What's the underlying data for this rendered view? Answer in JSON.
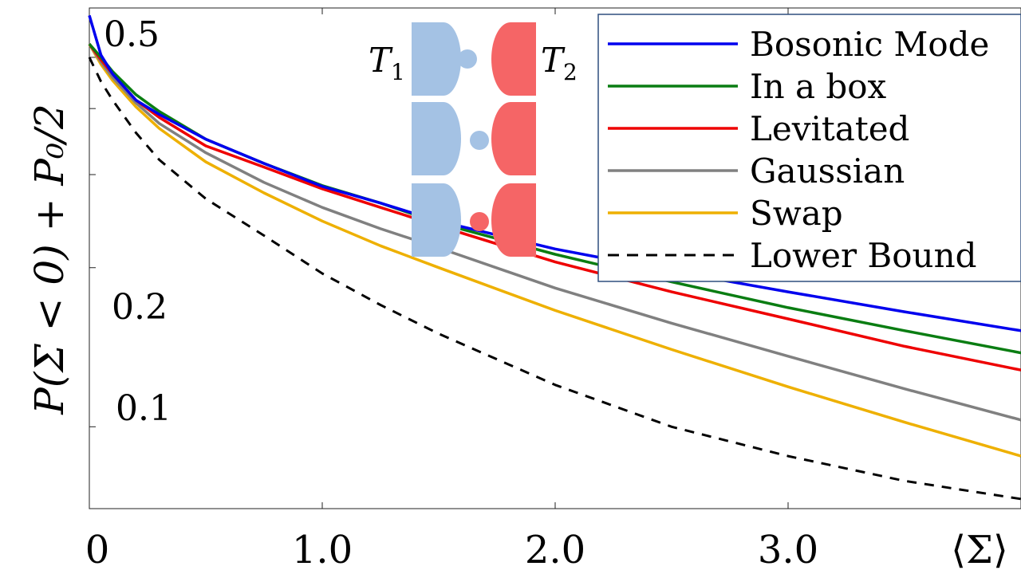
{
  "chart_data": {
    "type": "line",
    "title": "",
    "xlabel": "⟨Σ⟩",
    "ylabel": "P(Σ < 0) + P₀/2",
    "xlim": [
      0,
      4.0
    ],
    "ylim": [
      0.07,
      0.62
    ],
    "xticks": [
      {
        "value": 0,
        "label": "0"
      },
      {
        "value": 1.0,
        "label": "1.0"
      },
      {
        "value": 2.0,
        "label": "2.0"
      },
      {
        "value": 3.0,
        "label": "3.0"
      }
    ],
    "yticks": [
      {
        "value": 0.1,
        "label": "0.1"
      },
      {
        "value": 0.2,
        "label": "0.2"
      },
      {
        "value": 0.5,
        "label": "0.5"
      }
    ],
    "x": [
      0,
      0.05,
      0.1,
      0.2,
      0.3,
      0.5,
      0.75,
      1.0,
      1.25,
      1.5,
      2.0,
      2.5,
      3.0,
      3.5,
      4.0
    ],
    "series": [
      {
        "name": "Bosonic Mode",
        "color": "#0000ee",
        "dash": "solid",
        "values": [
          0.6,
          0.505,
          0.465,
          0.415,
          0.39,
          0.35,
          0.315,
          0.285,
          0.265,
          0.245,
          0.217,
          0.197,
          0.18,
          0.165,
          0.152
        ]
      },
      {
        "name": "In a box",
        "color": "#0a7d12",
        "dash": "solid",
        "values": [
          0.53,
          0.5,
          0.47,
          0.425,
          0.395,
          0.35,
          0.315,
          0.286,
          0.265,
          0.243,
          0.212,
          0.188,
          0.168,
          0.152,
          0.138
        ]
      },
      {
        "name": "Levitated",
        "color": "#ee0000",
        "dash": "solid",
        "values": [
          0.53,
          0.495,
          0.465,
          0.415,
          0.385,
          0.34,
          0.31,
          0.282,
          0.26,
          0.24,
          0.205,
          0.18,
          0.16,
          0.142,
          0.128
        ]
      },
      {
        "name": "Gaussian",
        "color": "#808080",
        "dash": "solid",
        "values": [
          0.53,
          0.49,
          0.458,
          0.41,
          0.375,
          0.33,
          0.29,
          0.26,
          0.237,
          0.218,
          0.183,
          0.157,
          0.136,
          0.118,
          0.103
        ]
      },
      {
        "name": "Swap",
        "color": "#eeb000",
        "dash": "solid",
        "values": [
          0.53,
          0.485,
          0.452,
          0.403,
          0.367,
          0.317,
          0.277,
          0.245,
          0.22,
          0.2,
          0.166,
          0.14,
          0.119,
          0.102,
          0.088
        ]
      },
      {
        "name": "Lower Bound",
        "color": "#000000",
        "dash": "dashed",
        "values": [
          0.5,
          0.45,
          0.415,
          0.36,
          0.32,
          0.27,
          0.23,
          0.195,
          0.17,
          0.15,
          0.12,
          0.1,
          0.088,
          0.079,
          0.073
        ]
      }
    ],
    "legend_position": "top-right",
    "inset": {
      "label_left": "T1",
      "label_right": "T2",
      "rows": 3,
      "color_cold": "#a4c2e4",
      "color_hot": "#f56566"
    }
  }
}
